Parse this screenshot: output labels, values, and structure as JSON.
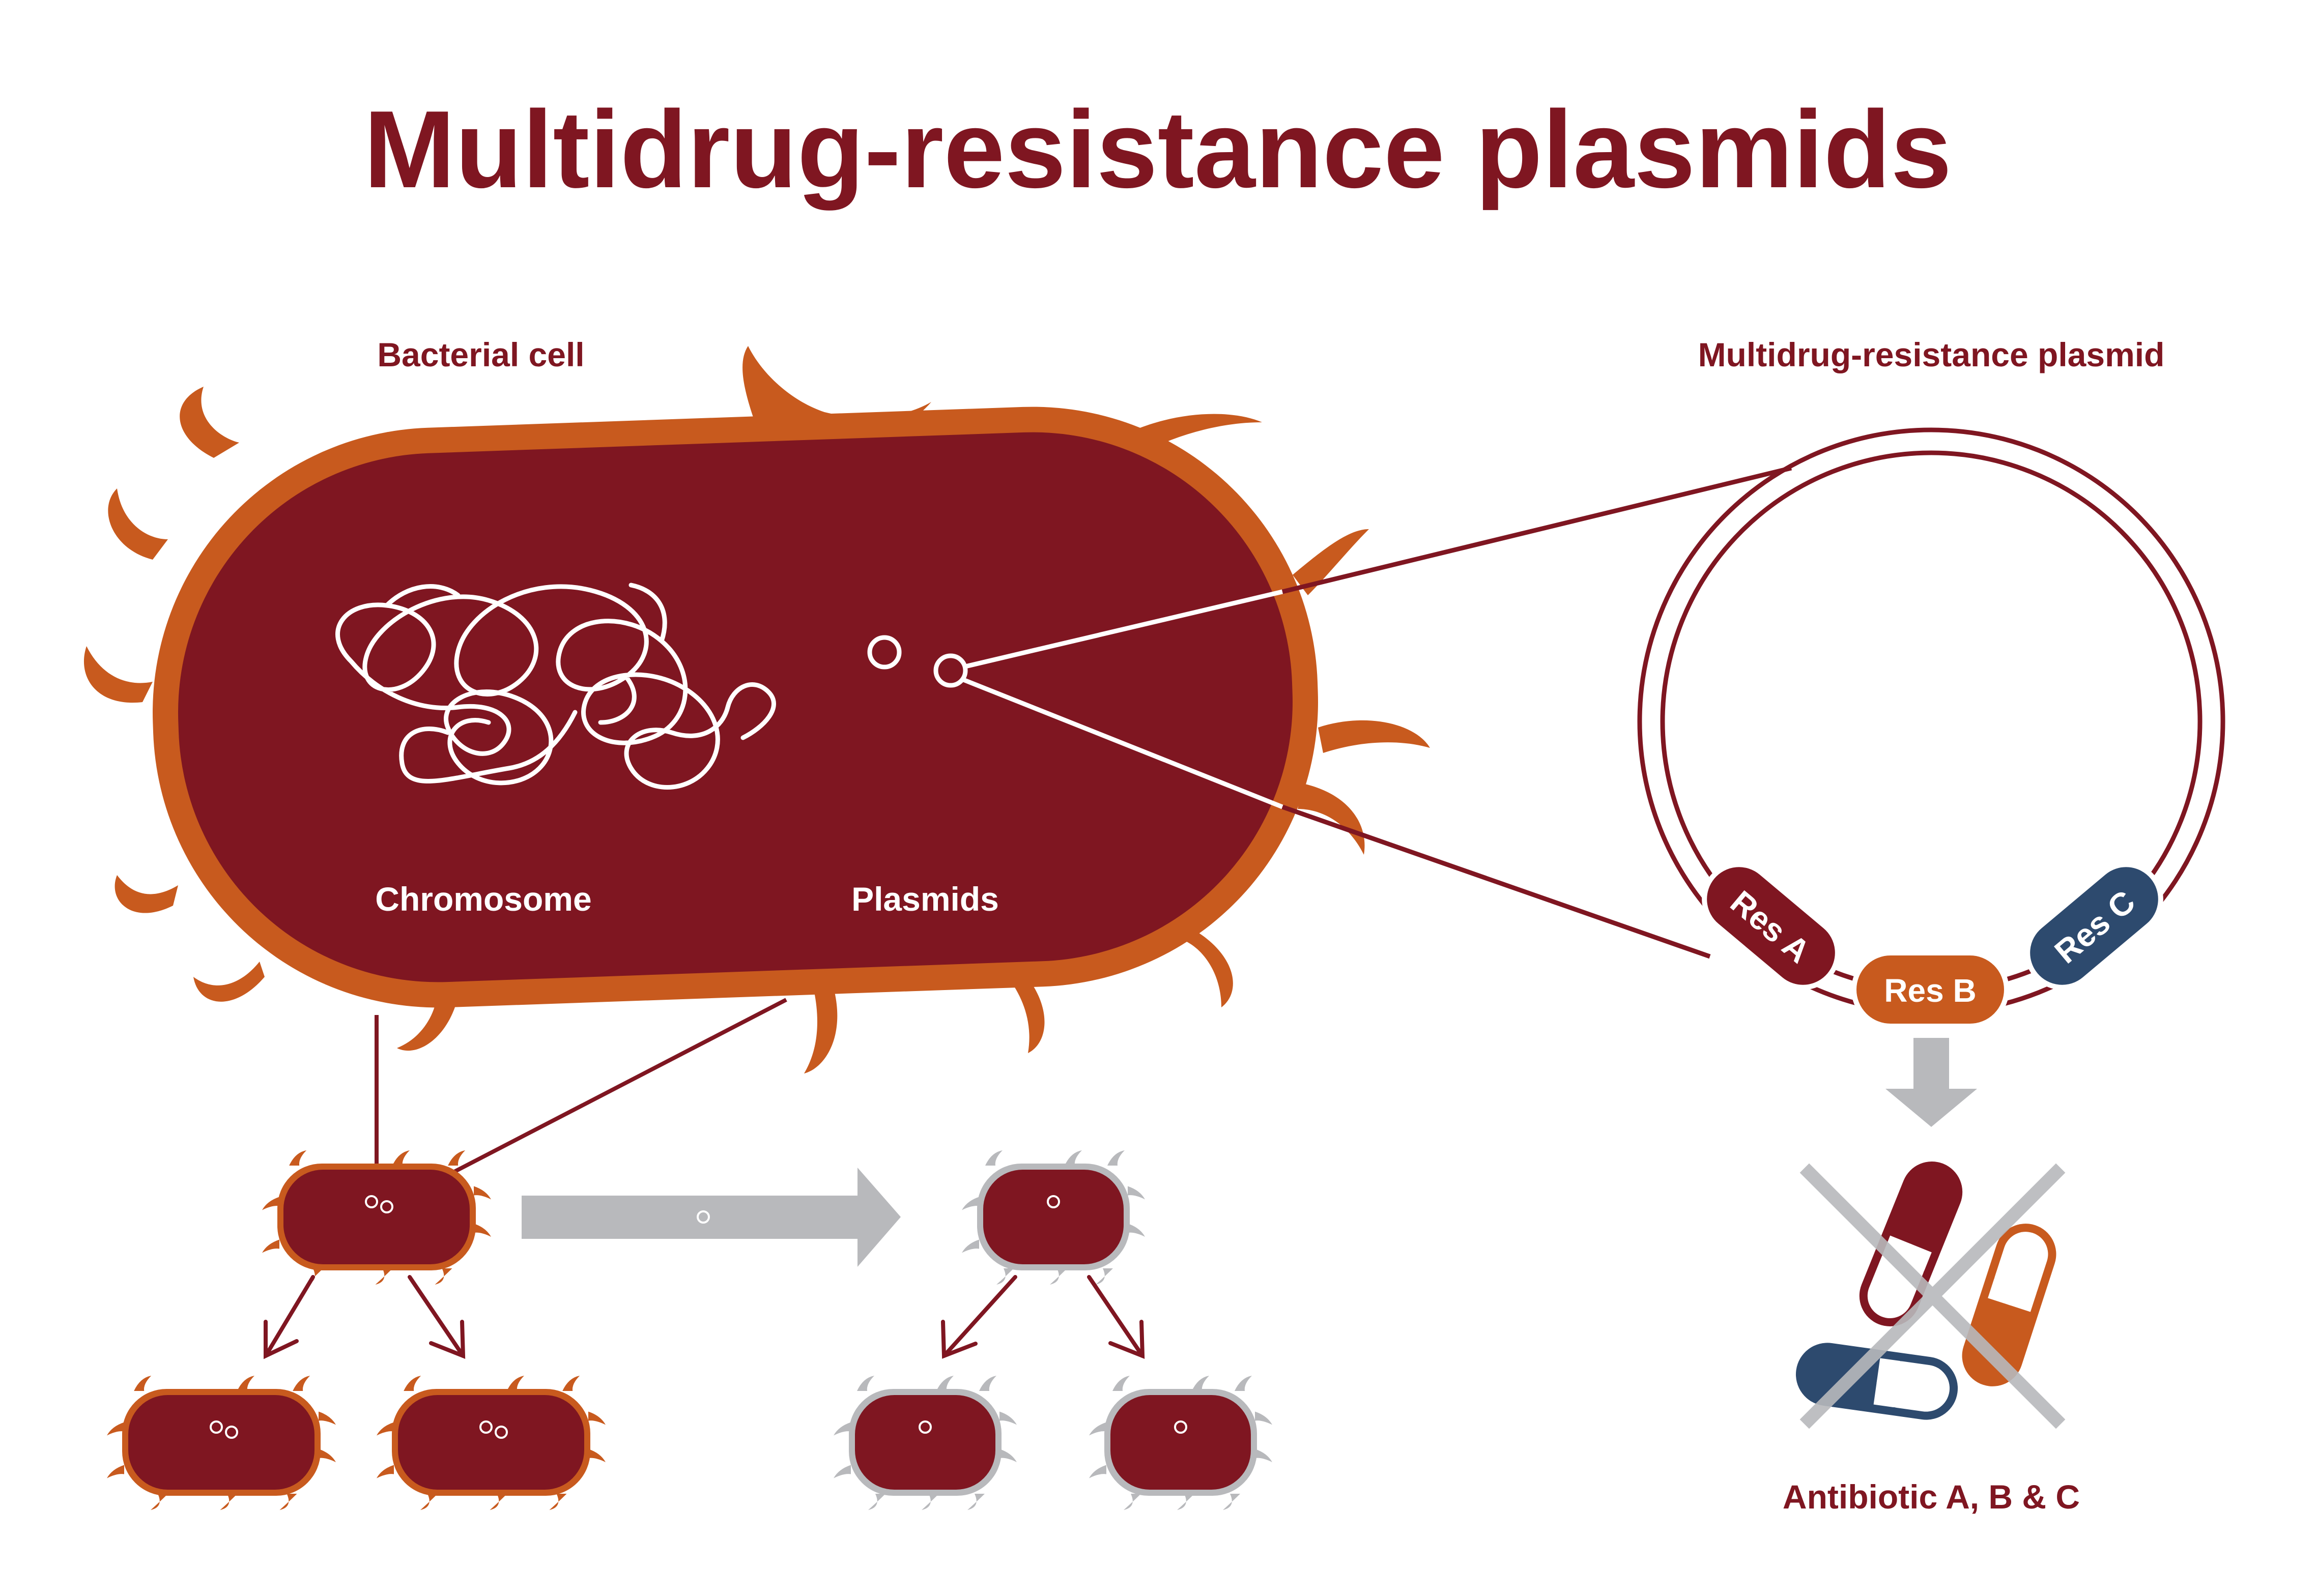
{
  "title": "Multidrug-resistance plasmids",
  "labels": {
    "bacterial_cell": "Bacterial cell",
    "chromosome": "Chromosome",
    "plasmids": "Plasmids",
    "plasmid_detail": "Multidrug-resistance plasmid",
    "antibiotics": "Antibiotic A, B & C"
  },
  "genes": {
    "res_a": "Res A",
    "res_b": "Res B",
    "res_c": "Res C"
  },
  "colors": {
    "maroon": "#7f1621",
    "orange": "#c85a1e",
    "navy": "#2d4a6e",
    "gray": "#b8b9bc",
    "white": "#ffffff"
  }
}
